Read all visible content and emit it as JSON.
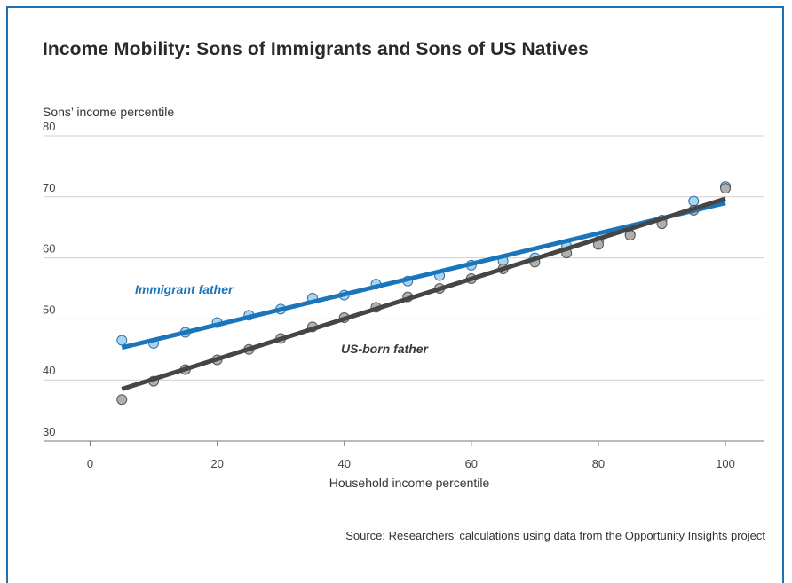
{
  "chart_data": {
    "type": "scatter",
    "title": "Income Mobility: Sons of Immigrants and Sons of US Natives",
    "xlabel": "Household income percentile",
    "ylabel": "Sons’ income percentile",
    "xlim": [
      -3,
      106
    ],
    "ylim": [
      30,
      80
    ],
    "xticks": [
      0,
      20,
      40,
      60,
      80,
      100
    ],
    "yticks": [
      30,
      40,
      50,
      60,
      70,
      80
    ],
    "grid": "horizontal",
    "source": "Source: Researchers’ calculations using data from the Opportunity Insights project",
    "series": [
      {
        "name": "Immigrant father",
        "color": "#a9d4f0",
        "line_color": "#1b75bb",
        "x": [
          5,
          10,
          15,
          20,
          25,
          30,
          35,
          40,
          45,
          50,
          55,
          60,
          65,
          70,
          75,
          80,
          85,
          90,
          95,
          100
        ],
        "values": [
          46.5,
          46.0,
          47.8,
          49.4,
          50.6,
          51.6,
          53.4,
          53.9,
          55.7,
          56.2,
          57.1,
          58.8,
          59.5,
          60.0,
          61.9,
          62.7,
          63.8,
          66.2,
          69.3,
          71.7
        ],
        "trend": [
          [
            5,
            45.3
          ],
          [
            100,
            69.0
          ]
        ]
      },
      {
        "name": "US-born father",
        "color": "#b0b0b0",
        "line_color": "#454545",
        "x": [
          5,
          10,
          15,
          20,
          25,
          30,
          35,
          40,
          45,
          50,
          55,
          60,
          65,
          70,
          75,
          80,
          85,
          90,
          95,
          100
        ],
        "values": [
          36.8,
          39.8,
          41.7,
          43.3,
          45.0,
          46.8,
          48.7,
          50.2,
          51.9,
          53.6,
          55.0,
          56.6,
          58.2,
          59.3,
          60.8,
          62.2,
          63.7,
          65.6,
          67.8,
          71.4
        ],
        "trend": [
          [
            5,
            38.5
          ],
          [
            100,
            69.7
          ]
        ]
      }
    ]
  }
}
